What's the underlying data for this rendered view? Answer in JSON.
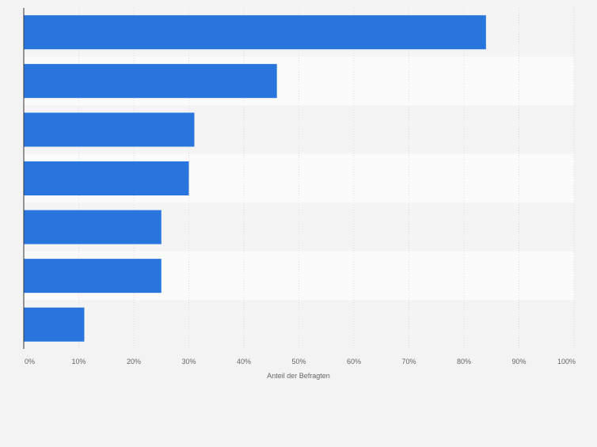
{
  "chart_data": {
    "type": "bar",
    "orientation": "horizontal",
    "categories": [
      "",
      "",
      "",
      "",
      "",
      "",
      ""
    ],
    "values": [
      84,
      46,
      31,
      30,
      25,
      25,
      11
    ],
    "xlabel": "Anteil der Befragten",
    "ylabel": "",
    "xlim": [
      0,
      100
    ],
    "x_ticks": [
      "0%",
      "10%",
      "20%",
      "30%",
      "40%",
      "50%",
      "60%",
      "70%",
      "80%",
      "90%",
      "100%"
    ],
    "grid": true,
    "bar_color": "#2876dd",
    "band_colors": [
      "#f4f4f4",
      "#fbfbfb"
    ]
  }
}
